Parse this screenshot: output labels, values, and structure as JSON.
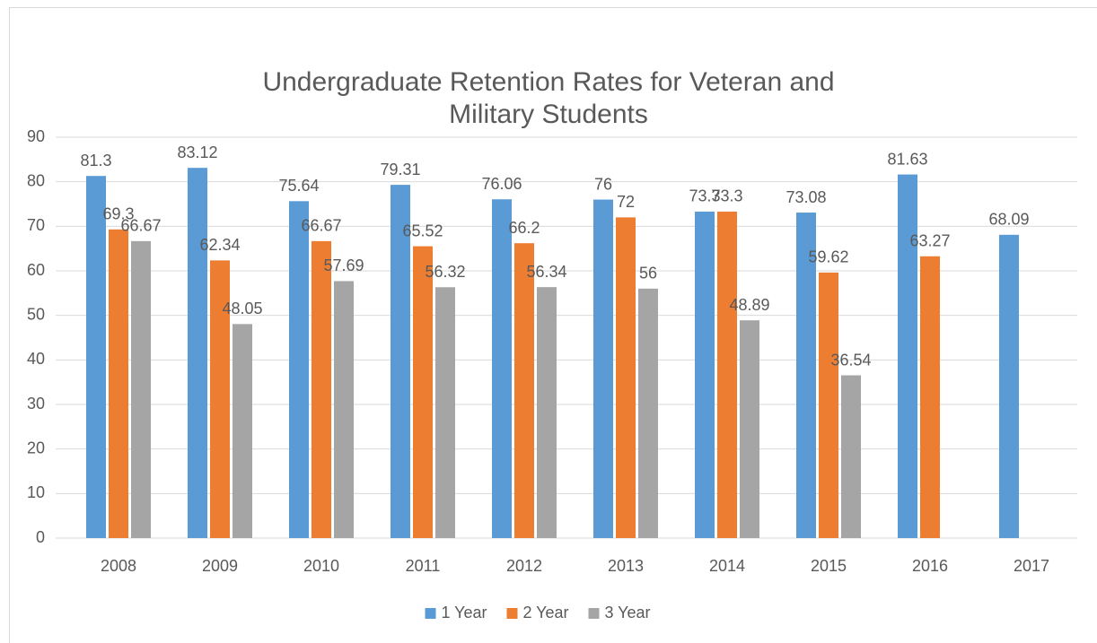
{
  "chart_data": {
    "type": "bar",
    "title": "Undergraduate Retention Rates for Veteran and Military Students",
    "categories": [
      "2008",
      "2009",
      "2010",
      "2011",
      "2012",
      "2013",
      "2014",
      "2015",
      "2016",
      "2017"
    ],
    "series": [
      {
        "name": "1 Year",
        "color": "#5b9bd5",
        "values": [
          81.3,
          83.12,
          75.64,
          79.31,
          76.06,
          76,
          73.3,
          73.08,
          81.63,
          68.09
        ]
      },
      {
        "name": "2 Year",
        "color": "#ed7d31",
        "values": [
          69.3,
          62.34,
          66.67,
          65.52,
          66.2,
          72,
          73.3,
          59.62,
          63.27,
          null
        ]
      },
      {
        "name": "3 Year",
        "color": "#a5a5a5",
        "values": [
          66.67,
          48.05,
          57.69,
          56.32,
          56.34,
          56,
          48.89,
          36.54,
          null,
          null
        ]
      }
    ],
    "ylim": [
      0,
      90
    ],
    "yticks": [
      0,
      10,
      20,
      30,
      40,
      50,
      60,
      70,
      80,
      90
    ],
    "grid": true,
    "legend": "bottom"
  }
}
